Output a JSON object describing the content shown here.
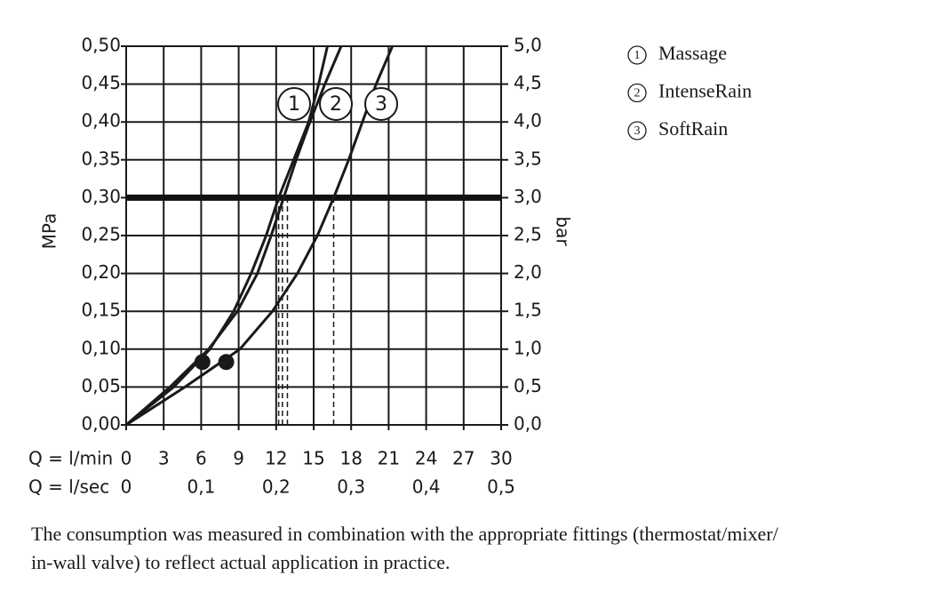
{
  "chart_data": {
    "type": "line",
    "y_label": "MPa",
    "y2_label": "bar",
    "x_label": "Q = l/min",
    "x2_label": "Q = l/sec",
    "xlim": [
      0,
      30
    ],
    "xticks": [
      0,
      3,
      6,
      9,
      12,
      15,
      18,
      21,
      24,
      27,
      30
    ],
    "x2lim": [
      0,
      0.5
    ],
    "x2ticks": [
      0,
      {
        "value": 0.1,
        "label": "0,1"
      },
      {
        "value": 0.2,
        "label": "0,2"
      },
      {
        "value": 0.3,
        "label": "0,3"
      },
      {
        "value": 0.4,
        "label": "0,4"
      },
      {
        "value": 0.5,
        "label": "0,5"
      }
    ],
    "ylim": [
      0,
      0.5
    ],
    "yticks": [
      {
        "value": 0,
        "label": "0,00"
      },
      {
        "value": 0.05,
        "label": "0,05"
      },
      {
        "value": 0.1,
        "label": "0,10"
      },
      {
        "value": 0.15,
        "label": "0,15"
      },
      {
        "value": 0.2,
        "label": "0,20"
      },
      {
        "value": 0.25,
        "label": "0,25"
      },
      {
        "value": 0.3,
        "label": "0,30"
      },
      {
        "value": 0.35,
        "label": "0,35"
      },
      {
        "value": 0.4,
        "label": "0,40"
      },
      {
        "value": 0.45,
        "label": "0,45"
      },
      {
        "value": 0.5,
        "label": "0,50"
      }
    ],
    "y2lim": [
      0,
      5
    ],
    "y2ticks": [
      {
        "value": 0,
        "label": "0,0"
      },
      {
        "value": 0.5,
        "label": "0,5"
      },
      {
        "value": 1,
        "label": "1,0"
      },
      {
        "value": 1.5,
        "label": "1,5"
      },
      {
        "value": 2,
        "label": "2,0"
      },
      {
        "value": 2.5,
        "label": "2,5"
      },
      {
        "value": 3,
        "label": "3,0"
      },
      {
        "value": 3.5,
        "label": "3,5"
      },
      {
        "value": 4,
        "label": "4,0"
      },
      {
        "value": 4.5,
        "label": "4,5"
      },
      {
        "value": 5,
        "label": "5,0"
      }
    ],
    "grid": true,
    "reference_y": 0.3,
    "reference_x": [
      12.2,
      12.5,
      12.9,
      16.6
    ],
    "markers": [
      {
        "x": 6.1,
        "y": 0.083
      },
      {
        "x": 8,
        "y": 0.083
      }
    ],
    "series": [
      {
        "name": "Massage",
        "label": "1",
        "color": "#1a1a1a",
        "x": [
          0,
          3.8,
          6.7,
          8.6,
          10.0,
          11.2,
          12.2,
          13.4,
          14.6,
          15.4,
          16.1
        ],
        "values": [
          0,
          0.05,
          0.1,
          0.15,
          0.2,
          0.25,
          0.3,
          0.35,
          0.4,
          0.45,
          0.5
        ]
      },
      {
        "name": "IntenseRain",
        "label": "2",
        "color": "#1a1a1a",
        "x": [
          0,
          3.5,
          6.6,
          8.9,
          10.5,
          11.6,
          12.6,
          13.6,
          14.7,
          15.9,
          17.2
        ],
        "values": [
          0,
          0.05,
          0.1,
          0.15,
          0.2,
          0.25,
          0.3,
          0.35,
          0.4,
          0.45,
          0.5
        ]
      },
      {
        "name": "SoftRain",
        "label": "3",
        "color": "#1a1a1a",
        "x": [
          0,
          4.7,
          9.1,
          11.7,
          13.7,
          15.3,
          16.6,
          17.8,
          18.9,
          20.0,
          21.3
        ],
        "values": [
          0,
          0.05,
          0.1,
          0.15,
          0.2,
          0.25,
          0.3,
          0.35,
          0.4,
          0.45,
          0.5
        ]
      }
    ],
    "footnote_lines": [
      "The consumption was measured in combination with the appropriate fittings (thermostat/mixer/",
      "in-wall valve) to reflect actual application in practice."
    ]
  }
}
